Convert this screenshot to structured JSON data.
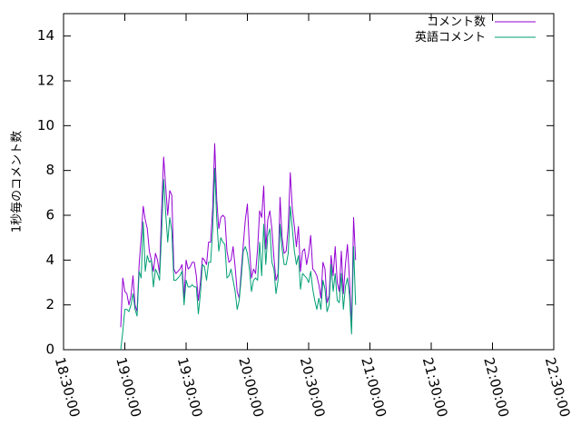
{
  "chart_data": {
    "type": "line",
    "ylabel": "1秒毎のコメント数",
    "xlabel": "",
    "title": "",
    "xlim": [
      "18:30:00",
      "22:30:00"
    ],
    "ylim": [
      0,
      15
    ],
    "x_ticks": [
      "18:30:00",
      "19:00:00",
      "19:30:00",
      "20:00:00",
      "20:30:00",
      "21:00:00",
      "21:30:00",
      "22:00:00",
      "22:30:00"
    ],
    "y_ticks": [
      0,
      2,
      4,
      6,
      8,
      10,
      12,
      14
    ],
    "grid": false,
    "legend_position": "top-right",
    "x_start": "18:58:00",
    "x_step": "1 minute",
    "series": [
      {
        "name": "コメント数",
        "color": "#9400d3",
        "values": [
          1.0,
          3.2,
          2.6,
          2.5,
          2.0,
          2.4,
          3.3,
          2.0,
          1.7,
          3.8,
          5.0,
          6.4,
          5.8,
          5.4,
          4.4,
          4.0,
          3.5,
          4.3,
          4.0,
          3.4,
          6.2,
          8.6,
          7.3,
          6.0,
          7.1,
          6.9,
          3.6,
          3.4,
          3.5,
          3.6,
          3.8,
          2.3,
          4.0,
          3.6,
          3.7,
          3.9,
          3.9,
          3.3,
          2.2,
          3.0,
          4.1,
          4.0,
          3.8,
          4.8,
          4.8,
          6.3,
          9.2,
          6.7,
          5.4,
          5.9,
          6.0,
          5.9,
          4.4,
          3.9,
          4.0,
          4.6,
          3.7,
          2.6,
          2.3,
          3.5,
          4.7,
          5.8,
          6.5,
          4.6,
          3.2,
          3.6,
          3.4,
          4.5,
          6.2,
          5.9,
          7.3,
          4.5,
          5.8,
          6.2,
          5.4,
          4.1,
          3.1,
          3.4,
          6.8,
          5.0,
          4.3,
          4.4,
          5.5,
          7.9,
          6.3,
          5.5,
          4.6,
          5.5,
          3.5,
          4.4,
          4.5,
          3.8,
          4.3,
          5.1,
          3.6,
          3.5,
          3.3,
          2.9,
          2.3,
          3.9,
          3.6,
          2.1,
          2.4,
          4.2,
          3.3,
          4.6,
          3.0,
          2.6,
          4.4,
          2.5,
          3.8,
          4.7,
          3.1,
          1.0,
          5.9,
          4.0
        ]
      },
      {
        "name": "英語コメント",
        "color": "#009e73",
        "values": [
          0.0,
          0.8,
          1.8,
          1.8,
          1.7,
          2.0,
          2.5,
          1.8,
          1.5,
          3.5,
          3.2,
          5.7,
          3.5,
          4.2,
          3.9,
          4.0,
          2.8,
          3.6,
          3.4,
          3.1,
          5.2,
          7.6,
          6.1,
          4.8,
          5.9,
          5.3,
          3.1,
          3.1,
          3.2,
          3.3,
          3.5,
          2.0,
          3.1,
          2.8,
          2.8,
          2.9,
          2.8,
          2.8,
          1.6,
          2.5,
          3.8,
          3.7,
          3.1,
          3.9,
          3.9,
          5.3,
          8.1,
          5.8,
          4.4,
          5.0,
          4.8,
          4.7,
          3.2,
          3.3,
          3.6,
          3.1,
          2.6,
          1.8,
          2.2,
          3.2,
          4.4,
          4.6,
          4.3,
          3.6,
          2.6,
          3.1,
          3.2,
          3.1,
          4.8,
          3.3,
          5.6,
          3.8,
          5.1,
          5.4,
          3.9,
          3.6,
          2.5,
          3.1,
          5.6,
          4.5,
          3.8,
          3.8,
          4.3,
          6.4,
          5.4,
          4.4,
          3.8,
          4.2,
          2.7,
          3.4,
          3.3,
          3.2,
          3.0,
          3.5,
          2.7,
          2.2,
          1.8,
          2.3,
          1.8,
          3.1,
          2.7,
          1.7,
          2.0,
          3.8,
          2.6,
          3.4,
          2.2,
          2.1,
          3.4,
          1.8,
          2.8,
          3.2,
          2.4,
          0.7,
          4.6,
          2.0
        ]
      }
    ]
  }
}
